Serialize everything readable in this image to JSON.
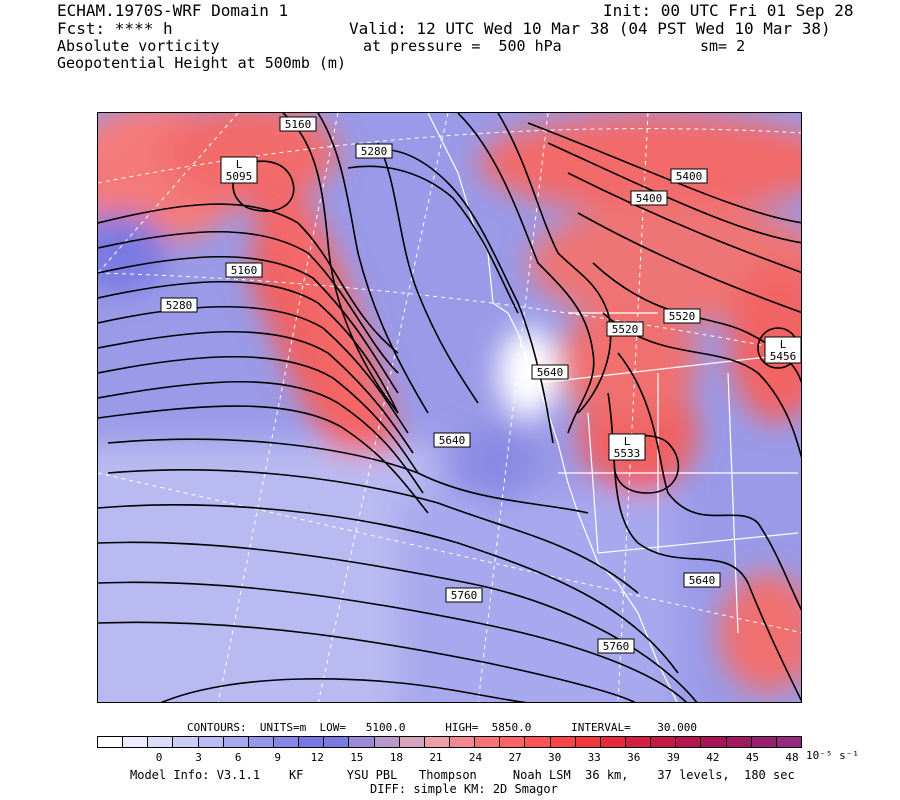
{
  "header": {
    "model": "ECHAM.1970S-WRF Domain 1",
    "fcst": "Fcst: **** h",
    "field1": "Absolute vorticity",
    "field2": "Geopotential Height at 500mb (m)",
    "init": "Init: 00 UTC Fri 01 Sep 28",
    "valid": "Valid: 12 UTC Wed 10 Mar 38 (04 PST Wed 10 Mar 38)",
    "pressure": "at pressure =  500 hPa",
    "smooth": "sm= 2"
  },
  "contour_labels": [
    {
      "text": "5160"
    },
    {
      "text": "5280"
    },
    {
      "text": "5400"
    },
    {
      "text": "5400"
    },
    {
      "text": "5160"
    },
    {
      "text": "5280"
    },
    {
      "text": "5520"
    },
    {
      "text": "5520"
    },
    {
      "text": "5640"
    },
    {
      "text": "5640"
    },
    {
      "text": "5640"
    },
    {
      "text": "5760"
    },
    {
      "text": "5760"
    }
  ],
  "lows": [
    {
      "letter": "L",
      "value": "5095"
    },
    {
      "letter": "L",
      "value": "5456"
    },
    {
      "letter": "L",
      "value": "5533"
    }
  ],
  "contours_info": "CONTOURS:  UNITS=m  LOW=   5100.0      HIGH=  5850.0      INTERVAL=    30.000",
  "colorbar": {
    "colors": [
      "#ffffff",
      "#ececfc",
      "#dcdcfa",
      "#ccccf8",
      "#babaf4",
      "#a8a8f0",
      "#9696ec",
      "#8686e8",
      "#7878e4",
      "#7a7ae2",
      "#9a8ad8",
      "#b898cc",
      "#d6a4bc",
      "#ee9ea6",
      "#f4888e",
      "#f87474",
      "#fa6464",
      "#fa5454",
      "#f84444",
      "#f03838",
      "#e42a3a",
      "#d42040",
      "#c41848",
      "#b41450",
      "#a81458",
      "#a01862",
      "#9a1e70",
      "#962880"
    ],
    "ticks": [
      "0",
      "3",
      "6",
      "9",
      "12",
      "15",
      "18",
      "21",
      "24",
      "27",
      "30",
      "33",
      "36",
      "39",
      "42",
      "45",
      "48"
    ],
    "units": "10⁻⁵ s⁻¹"
  },
  "footer": {
    "line1": "Model Info: V3.1.1    KF      YSU PBL   Thompson     Noah LSM  36 km,    37 levels,  180 sec",
    "line2": "DIFF: simple KM: 2D Smagor"
  }
}
